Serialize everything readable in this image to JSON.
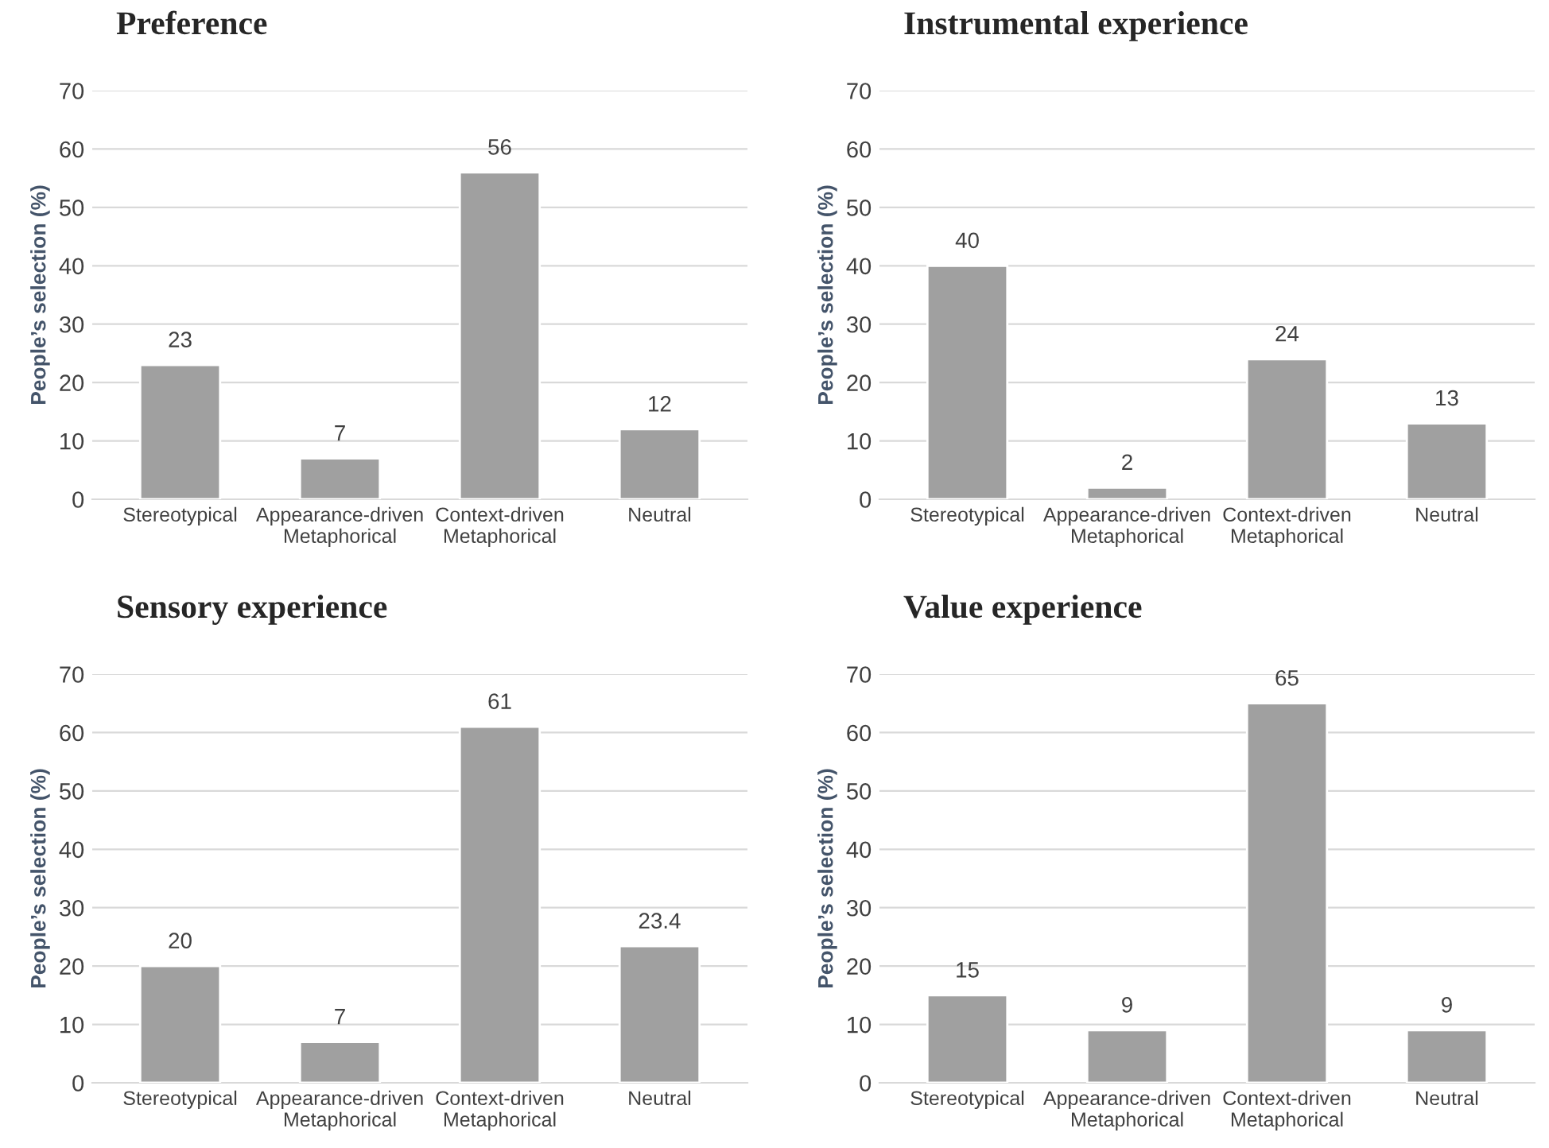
{
  "chart_data": [
    {
      "type": "bar",
      "title": "Preference",
      "ylabel": "People’s selection (%)",
      "categories": [
        "Stereotypical",
        "Appearance-driven\nMetaphorical",
        "Context-driven\nMetaphorical",
        "Neutral"
      ],
      "values": [
        23,
        7,
        56,
        12
      ],
      "color": "#a0a0a0",
      "ylim": [
        0,
        70
      ],
      "yticks": [
        0,
        10,
        20,
        30,
        40,
        50,
        60,
        70
      ],
      "grid": "y",
      "data_labels": true
    },
    {
      "type": "bar",
      "title": "Instrumental experience",
      "ylabel": "People’s selection (%)",
      "categories": [
        "Stereotypical",
        "Appearance-driven\nMetaphorical",
        "Context-driven\nMetaphorical",
        "Neutral"
      ],
      "values": [
        40,
        2,
        24,
        13
      ],
      "color": "#a0a0a0",
      "ylim": [
        0,
        70
      ],
      "yticks": [
        0,
        10,
        20,
        30,
        40,
        50,
        60,
        70
      ],
      "grid": "y",
      "data_labels": true
    },
    {
      "type": "bar",
      "title": "Sensory experience",
      "ylabel": "People’s selection (%)",
      "categories": [
        "Stereotypical",
        "Appearance-driven\nMetaphorical",
        "Context-driven\nMetaphorical",
        "Neutral"
      ],
      "values": [
        20,
        7,
        61,
        23.4
      ],
      "color": "#a0a0a0",
      "ylim": [
        0,
        70
      ],
      "yticks": [
        0,
        10,
        20,
        30,
        40,
        50,
        60,
        70
      ],
      "grid": "y",
      "data_labels": true
    },
    {
      "type": "bar",
      "title": "Value experience",
      "ylabel": "People’s selection (%)",
      "categories": [
        "Stereotypical",
        "Appearance-driven\nMetaphorical",
        "Context-driven\nMetaphorical",
        "Neutral"
      ],
      "values": [
        15,
        9,
        65,
        9
      ],
      "color": "#a0a0a0",
      "ylim": [
        0,
        70
      ],
      "yticks": [
        0,
        10,
        20,
        30,
        40,
        50,
        60,
        70
      ],
      "grid": "y",
      "data_labels": true
    }
  ]
}
